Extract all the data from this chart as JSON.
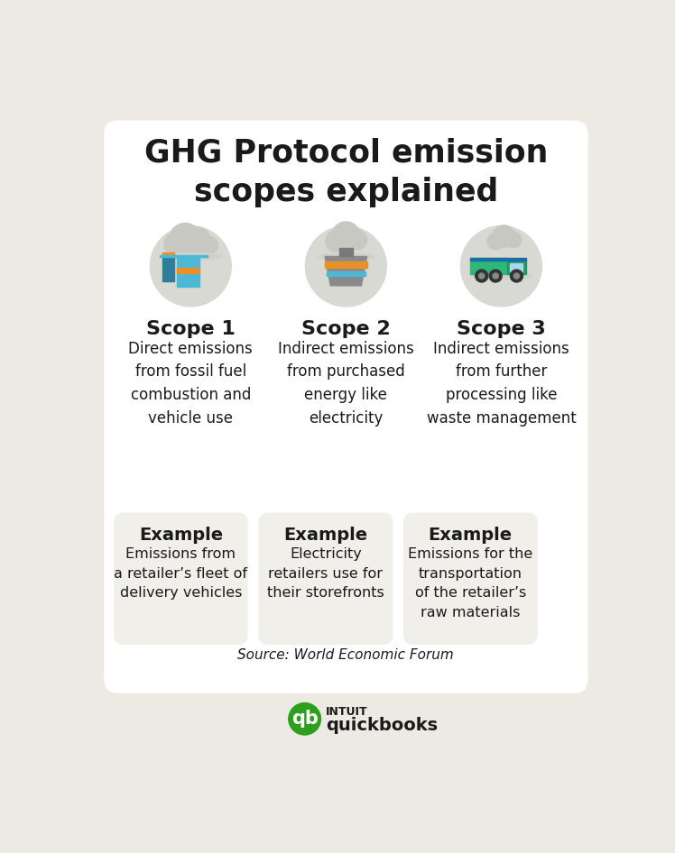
{
  "title": "GHG Protocol emission\nscopes explained",
  "background_outer": "#eceae3",
  "background_card": "#ffffff",
  "background_example": "#f0efea",
  "scopes": [
    "Scope 1",
    "Scope 2",
    "Scope 3"
  ],
  "scope_descriptions": [
    "Direct emissions\nfrom fossil fuel\ncombustion and\nvehicle use",
    "Indirect emissions\nfrom purchased\nenergy like\nelectricity",
    "Indirect emissions\nfrom further\nprocessing like\nwaste management"
  ],
  "example_label": "Example",
  "example_texts": [
    "Emissions from\na retailer’s fleet of\ndelivery vehicles",
    "Electricity\nretailers use for\ntheir storefronts",
    "Emissions for the\ntransportation\nof the retailer’s\nraw materials"
  ],
  "source_text": "Source: World Economic Forum",
  "text_color": "#1a1a1a",
  "icon_bg_color": "#d9d9d3",
  "smoke_color": "#c8c8c2",
  "scope1_colors": {
    "building_blue_dark": "#2e7d9e",
    "building_blue_light": "#4db8d4",
    "building_orange": "#e8912a",
    "base_line": "#4db8d4"
  },
  "scope2_colors": {
    "factory_body": "#8a8a8a",
    "factory_top": "#e8912a",
    "factory_stripe": "#4db8d4"
  },
  "scope3_colors": {
    "truck_body": "#2db87a",
    "truck_cabin": "#1e9960",
    "truck_wheels": "#333333",
    "truck_window": "#a8d8ea",
    "truck_blue": "#1a6fa8"
  },
  "quickbooks_green": "#2ca01c",
  "logo_text_color": "#1a1a1a"
}
